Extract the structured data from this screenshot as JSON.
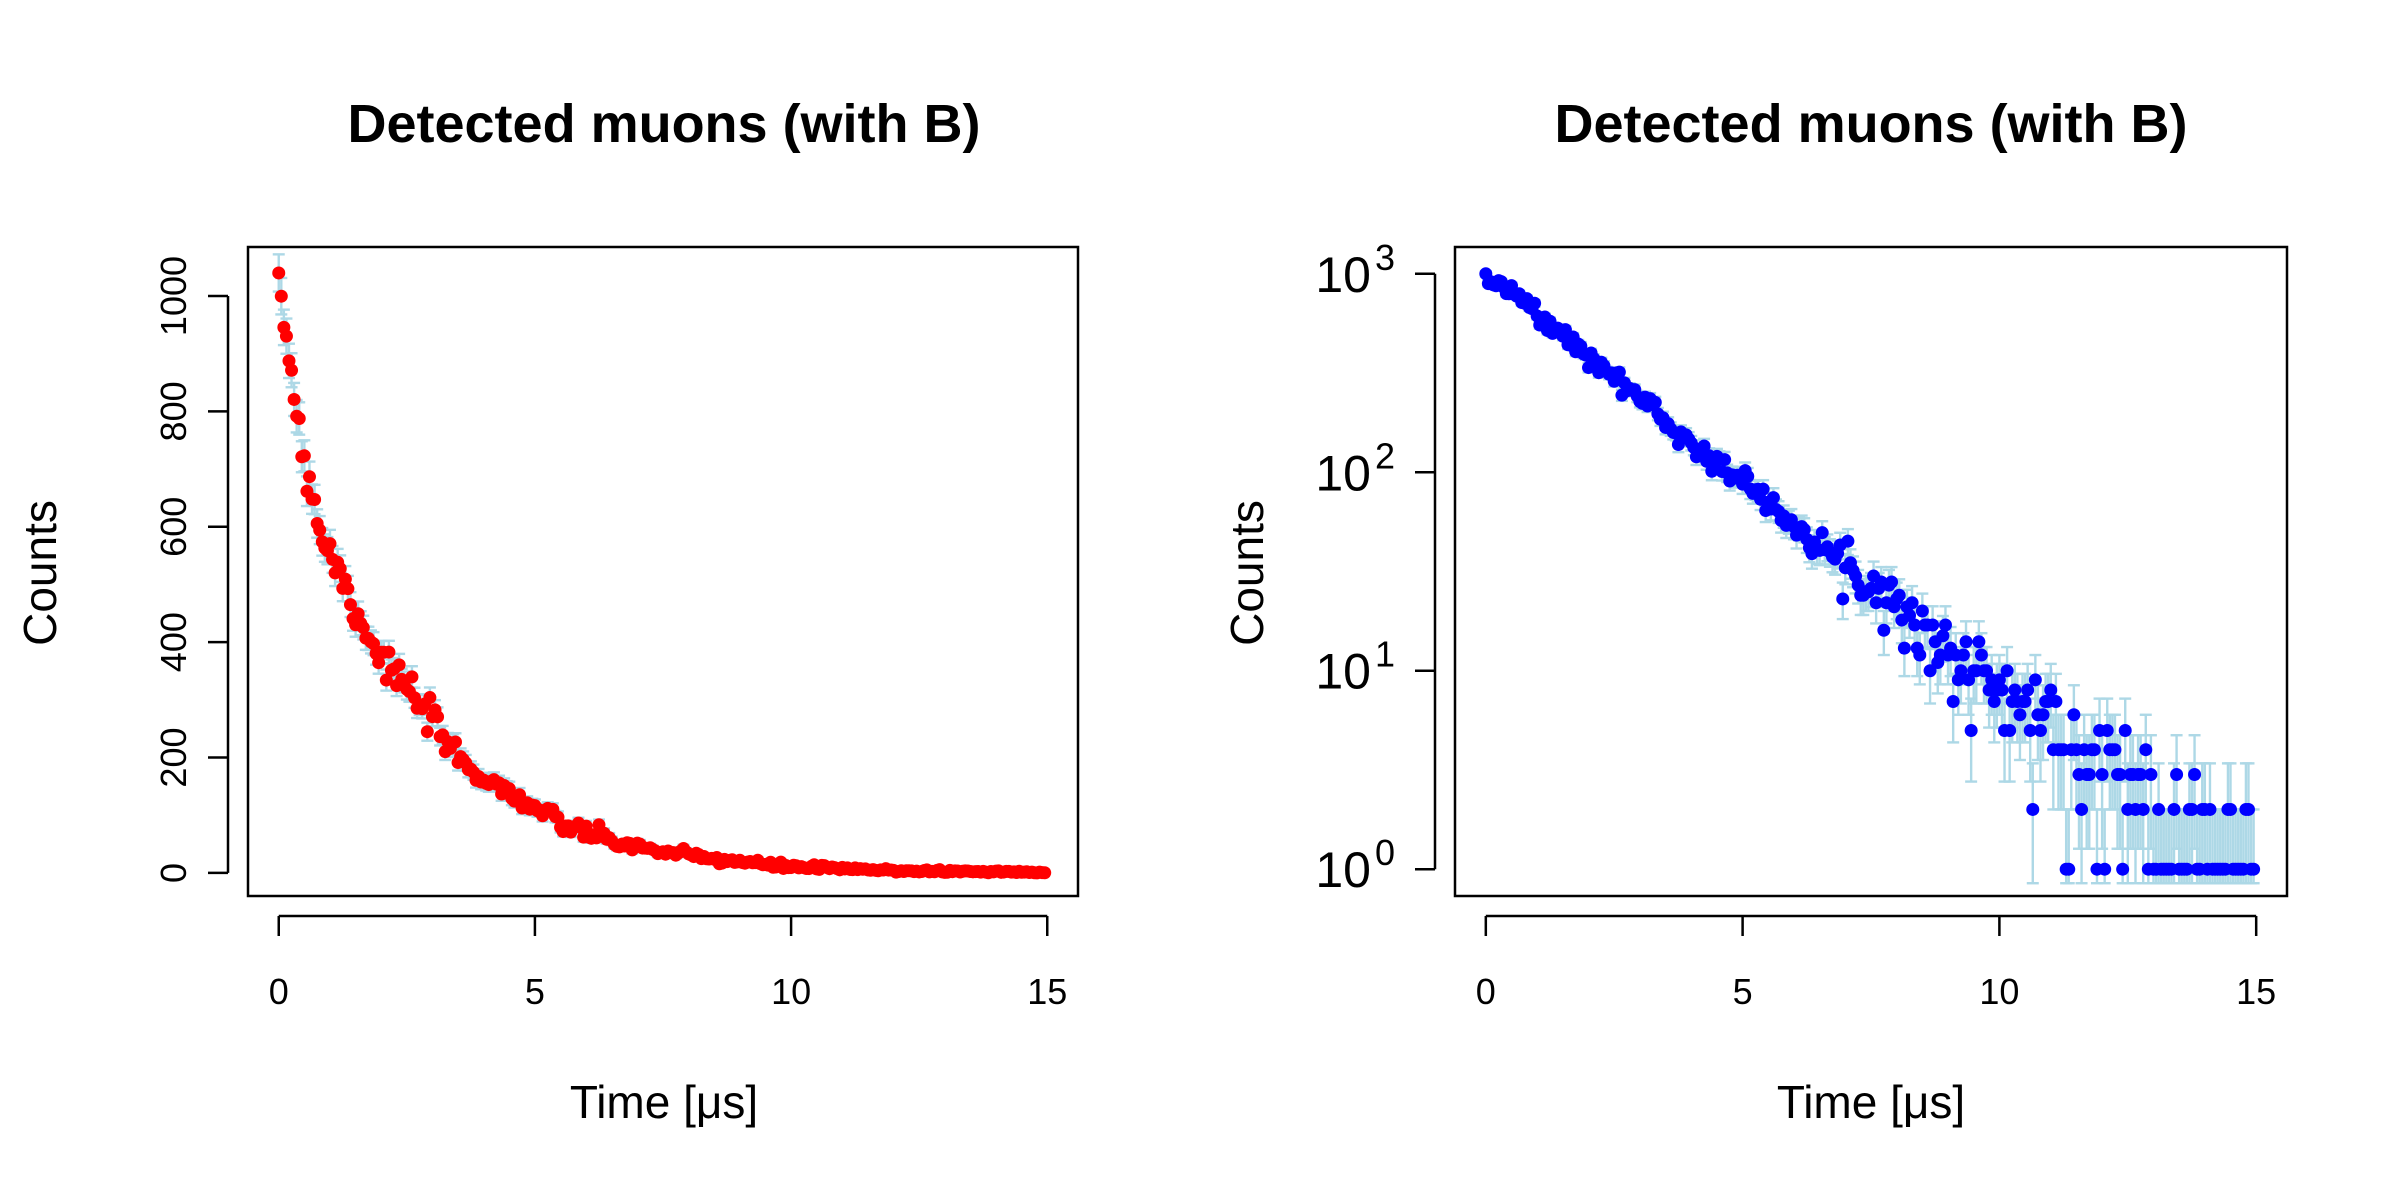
{
  "chart_data": [
    {
      "type": "scatter",
      "title": "Detected muons (with B)",
      "xlabel": "Time [μs]",
      "ylabel": "Counts",
      "xlim": [
        0,
        15
      ],
      "ylim": [
        0,
        1000
      ],
      "yscale": "linear",
      "xticks": [
        "0",
        "5",
        "10",
        "15"
      ],
      "yticks": [
        "0",
        "200",
        "400",
        "600",
        "800",
        "1000"
      ],
      "grid": false,
      "error_bars": true,
      "n_points": 300,
      "time_step": 0.05,
      "colors": {
        "points": "#ff0000",
        "error_bars": "#add8e6",
        "frame": "#000000"
      },
      "series": [
        {
          "x": [
            0,
            0.05,
            0.1,
            0.15,
            0.2,
            0.25,
            0.3,
            0.35,
            0.4,
            0.45,
            0.5,
            0.6,
            0.7,
            0.8,
            0.9,
            1.0,
            1.2,
            1.4,
            1.6,
            1.8,
            2.0,
            2.25,
            2.5,
            2.75,
            3.0,
            3.5,
            4.0,
            4.5,
            5.0,
            5.5,
            6.0,
            6.5,
            7.0,
            7.5,
            8.0,
            8.5,
            9.0,
            9.5,
            10.0,
            11.0,
            12.0,
            13.0,
            14.0,
            15.0
          ],
          "y": [
            1040,
            990,
            965,
            930,
            905,
            885,
            820,
            800,
            770,
            740,
            720,
            690,
            640,
            600,
            570,
            560,
            520,
            470,
            440,
            405,
            375,
            345,
            320,
            290,
            260,
            200,
            165,
            140,
            112,
            85,
            70,
            55,
            45,
            37,
            30,
            24,
            20,
            14,
            11,
            7,
            4,
            3,
            2,
            1
          ]
        }
      ]
    },
    {
      "type": "scatter",
      "title": "Detected muons (with B)",
      "xlabel": "Time [μs]",
      "ylabel": "Counts",
      "xlim": [
        0,
        15
      ],
      "ylim": [
        1,
        1000
      ],
      "yscale": "log",
      "xticks": [
        "0",
        "5",
        "10",
        "15"
      ],
      "yticks": [
        {
          "base": "10",
          "exp": "0"
        },
        {
          "base": "10",
          "exp": "1"
        },
        {
          "base": "10",
          "exp": "2"
        },
        {
          "base": "10",
          "exp": "3"
        }
      ],
      "grid": false,
      "error_bars": true,
      "n_points": 300,
      "time_step": 0.05,
      "colors": {
        "points": "#0000ff",
        "error_bars": "#add8e6",
        "frame": "#000000"
      },
      "series": [
        {
          "x": [
            0,
            0.5,
            1.0,
            1.5,
            2.0,
            2.5,
            3.0,
            3.5,
            4.0,
            4.5,
            5.0,
            5.5,
            6.0,
            6.5,
            7.0,
            7.5,
            8.0,
            8.5,
            9.0,
            9.5,
            10.0,
            10.5,
            11.0,
            11.5,
            12.0,
            12.5,
            13.0,
            13.5,
            14.0,
            14.5,
            15.0
          ],
          "y": [
            1000,
            800,
            620,
            490,
            380,
            300,
            240,
            180,
            140,
            110,
            90,
            70,
            55,
            45,
            32,
            28,
            22,
            16,
            12,
            10,
            8,
            6,
            5,
            4,
            3,
            3,
            2,
            2,
            1,
            1,
            1
          ]
        }
      ]
    }
  ]
}
